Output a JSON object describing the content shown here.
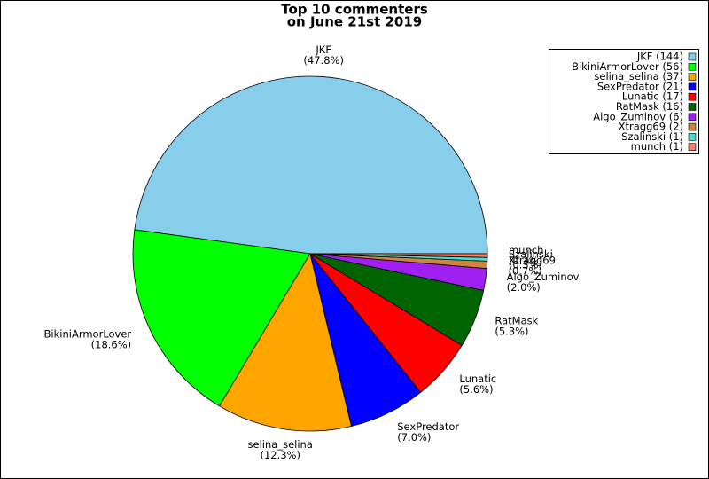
{
  "chart_data": {
    "type": "pie",
    "title": [
      "Top 10 commenters",
      "on June 21st 2019"
    ],
    "categories": [
      "JKF",
      "BikiniArmorLover",
      "selina_selina",
      "SexPredator",
      "Lunatic",
      "RatMask",
      "Aigo_Zuminov",
      "Xtragg69",
      "Szalinski",
      "munch"
    ],
    "values": [
      144,
      56,
      37,
      21,
      17,
      16,
      6,
      2,
      1,
      1
    ],
    "percent_labels": [
      "(47.8%)",
      "(18.6%)",
      "(12.3%)",
      "(7.0%)",
      "(5.6%)",
      "(5.3%)",
      "(2.0%)",
      "(0.7%)",
      "(0.3%)",
      "(0.3%)"
    ],
    "legend_labels": [
      "JKF (144)",
      "BikiniArmorLover (56)",
      "selina_selina (37)",
      "SexPredator (21)",
      "Lunatic (17)",
      "RatMask (16)",
      "Aigo_Zuminov (6)",
      "Xtragg69 (2)",
      "Szalinski (1)",
      "munch (1)"
    ],
    "colors": [
      "#87ceeb",
      "#00ff00",
      "#ffa500",
      "#0000ff",
      "#ff0000",
      "#006400",
      "#a020f0",
      "#cd853f",
      "#40e0d0",
      "#fa8072"
    ],
    "legend": "upper-right"
  }
}
